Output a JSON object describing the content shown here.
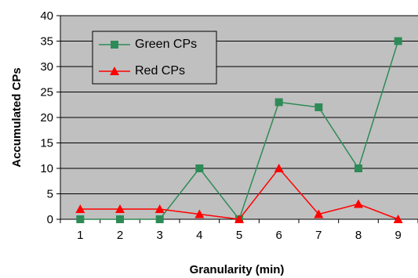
{
  "chart_data": {
    "type": "line",
    "xlabel": "Granularity (min)",
    "ylabel": "Accumulated CPs",
    "x": [
      1,
      2,
      3,
      4,
      5,
      6,
      7,
      8,
      9
    ],
    "ylim": [
      0,
      40
    ],
    "yticks": [
      0,
      5,
      10,
      15,
      20,
      25,
      30,
      35,
      40
    ],
    "grid": true,
    "legend_position": "top-left",
    "plot_background": "#c0c0c0",
    "series": [
      {
        "name": "Green CPs",
        "color": "#2e8b57",
        "marker": "square",
        "values": [
          0,
          0,
          0,
          10,
          0,
          23,
          22,
          10,
          35
        ]
      },
      {
        "name": "Red CPs",
        "color": "#ff0000",
        "marker": "triangle",
        "values": [
          2,
          2,
          2,
          1,
          0,
          10,
          1,
          3,
          0
        ]
      }
    ]
  }
}
